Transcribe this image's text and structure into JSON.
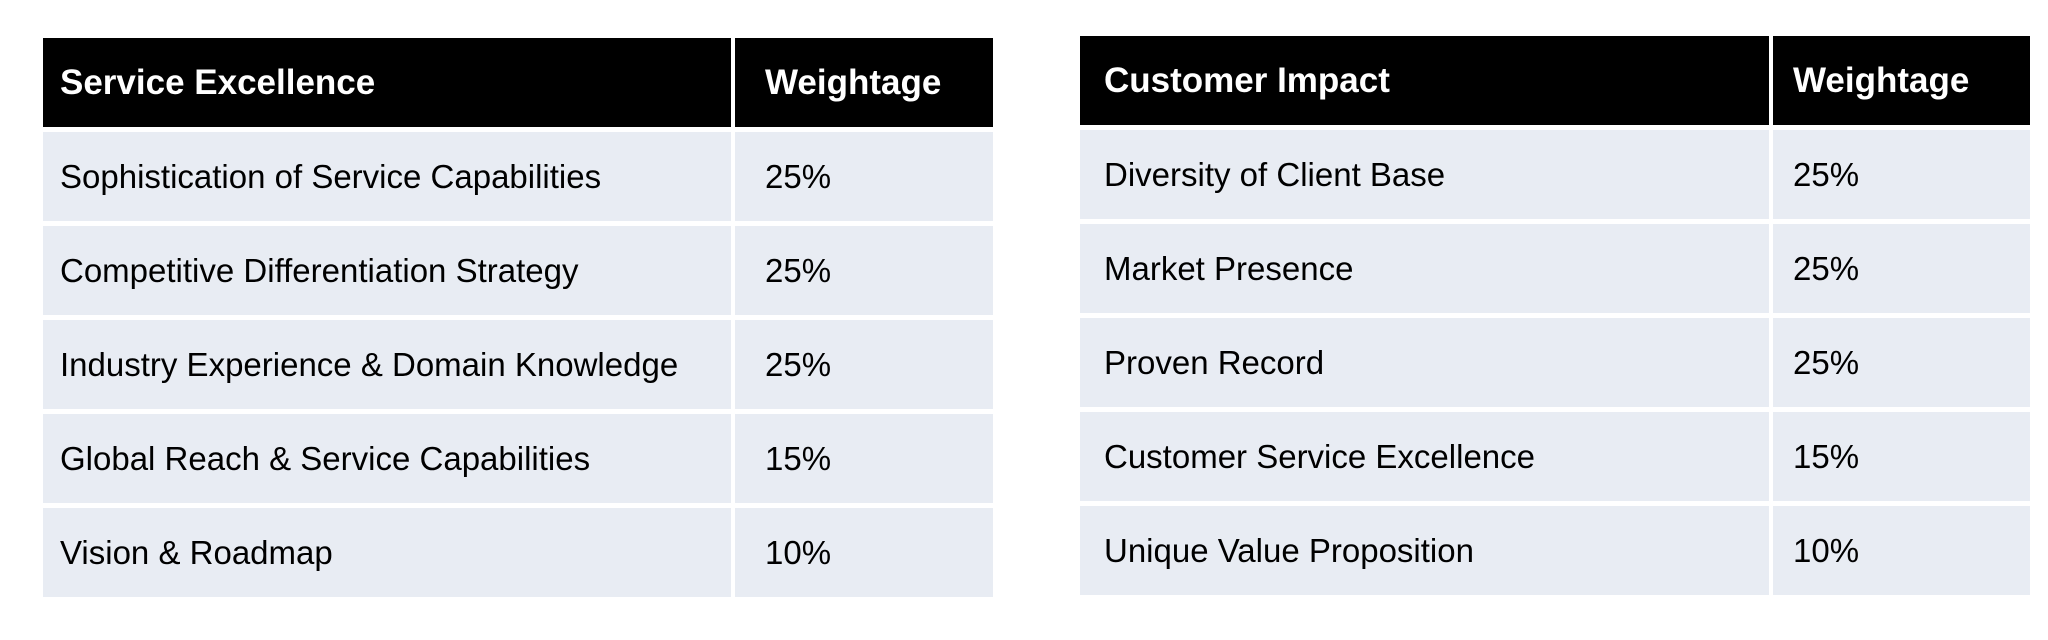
{
  "tables": [
    {
      "header": {
        "criterion": "Service Excellence",
        "weight": "Weightage"
      },
      "rows": [
        {
          "criterion": "Sophistication of Service Capabilities",
          "weight": "25%"
        },
        {
          "criterion": "Competitive Differentiation Strategy",
          "weight": "25%"
        },
        {
          "criterion": "Industry Experience & Domain Knowledge",
          "weight": "25%"
        },
        {
          "criterion": "Global Reach & Service Capabilities",
          "weight": "15%"
        },
        {
          "criterion": "Vision & Roadmap",
          "weight": "10%"
        }
      ]
    },
    {
      "header": {
        "criterion": "Customer Impact",
        "weight": "Weightage"
      },
      "rows": [
        {
          "criterion": "Diversity of Client Base",
          "weight": "25%"
        },
        {
          "criterion": "Market Presence",
          "weight": "25%"
        },
        {
          "criterion": "Proven Record",
          "weight": "25%"
        },
        {
          "criterion": "Customer Service Excellence",
          "weight": "15%"
        },
        {
          "criterion": "Unique Value Proposition",
          "weight": "10%"
        }
      ]
    }
  ],
  "colors": {
    "header_background": "#000000",
    "header_text": "#ffffff",
    "row_background": "#e8ecf3",
    "row_text": "#000000"
  }
}
